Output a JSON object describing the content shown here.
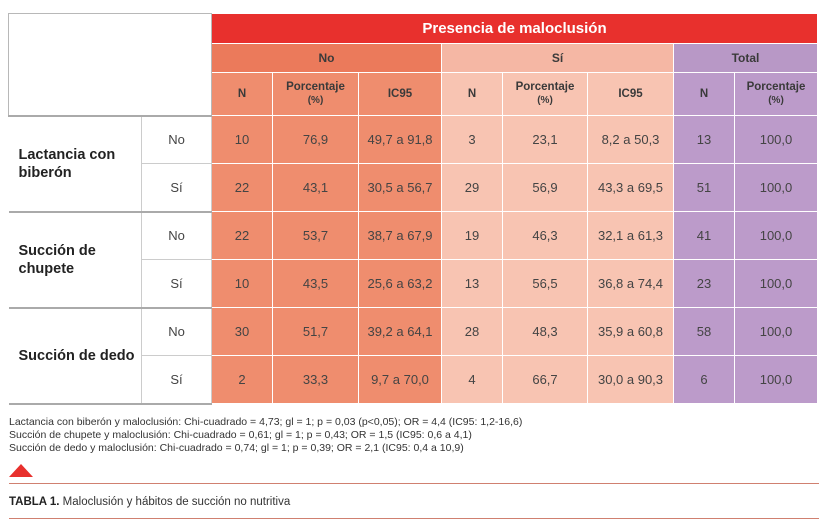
{
  "table": {
    "main_header": "Presencia de maloclusión",
    "groups": {
      "no": "No",
      "si": "Sí",
      "total": "Total"
    },
    "sub": {
      "n": "N",
      "pct_line1": "Porcentaje",
      "pct_line2": "(%)",
      "ic": "IC95"
    },
    "sections": [
      {
        "label": "Lactancia con biberón",
        "rows": [
          {
            "label": "No",
            "no_n": "10",
            "no_pct": "76,9",
            "no_ic": "49,7 a 91,8",
            "si_n": "3",
            "si_pct": "23,1",
            "si_ic": "8,2 a 50,3",
            "tot_n": "13",
            "tot_pct": "100,0"
          },
          {
            "label": "Sí",
            "no_n": "22",
            "no_pct": "43,1",
            "no_ic": "30,5 a 56,7",
            "si_n": "29",
            "si_pct": "56,9",
            "si_ic": "43,3 a 69,5",
            "tot_n": "51",
            "tot_pct": "100,0"
          }
        ]
      },
      {
        "label": "Succión de chupete",
        "rows": [
          {
            "label": "No",
            "no_n": "22",
            "no_pct": "53,7",
            "no_ic": "38,7 a 67,9",
            "si_n": "19",
            "si_pct": "46,3",
            "si_ic": "32,1 a 61,3",
            "tot_n": "41",
            "tot_pct": "100,0"
          },
          {
            "label": "Sí",
            "no_n": "10",
            "no_pct": "43,5",
            "no_ic": "25,6 a 63,2",
            "si_n": "13",
            "si_pct": "56,5",
            "si_ic": "36,8 a 74,4",
            "tot_n": "23",
            "tot_pct": "100,0"
          }
        ]
      },
      {
        "label": "Succión de dedo",
        "rows": [
          {
            "label": "No",
            "no_n": "30",
            "no_pct": "51,7",
            "no_ic": "39,2 a 64,1",
            "si_n": "28",
            "si_pct": "48,3",
            "si_ic": "35,9 a 60,8",
            "tot_n": "58",
            "tot_pct": "100,0"
          },
          {
            "label": "Sí",
            "no_n": "2",
            "no_pct": "33,3",
            "no_ic": "9,7 a 70,0",
            "si_n": "4",
            "si_pct": "66,7",
            "si_ic": "30,0 a 90,3",
            "tot_n": "6",
            "tot_pct": "100,0"
          }
        ]
      }
    ]
  },
  "notes": [
    "Lactancia con biberón y maloclusión: Chi-cuadrado = 4,73; gl = 1; p = 0,03 (p<0,05); OR = 4,4 (IC95: 1,2-16,6)",
    "Succión de chupete y maloclusión: Chi-cuadrado = 0,61; gl = 1; p = 0,43; OR = 1,5 (IC95: 0,6 a 4,1)",
    "Succión de dedo y maloclusión: Chi-cuadrado = 0,74; gl = 1; p = 0,39; OR = 2,1 (IC95: 0,4 a 10,9)"
  ],
  "caption": {
    "label": "TABLA 1.",
    "text": " Maloclusión y hábitos de succión no nutritiva"
  },
  "colors": {
    "accent_red": "#e8302d",
    "no_col": "#ef8d6e",
    "si_col": "#f8c4b2",
    "total_col": "#bc9bca"
  }
}
